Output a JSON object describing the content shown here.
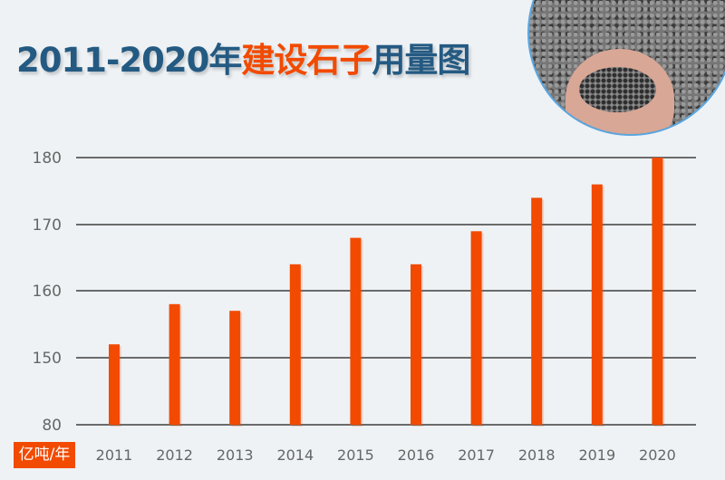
{
  "title": {
    "part1": "2011-2020年",
    "highlight": "建设石子",
    "part2": "用量图"
  },
  "chart_data": {
    "type": "bar",
    "title": "2011-2020年建设石子用量图",
    "unit_label": "亿吨/年",
    "categories": [
      "2011",
      "2012",
      "2013",
      "2014",
      "2015",
      "2016",
      "2017",
      "2018",
      "2019",
      "2020"
    ],
    "values": [
      152,
      158,
      157,
      164,
      168,
      164,
      169,
      174,
      176,
      180
    ],
    "yticks": [
      80,
      150,
      160,
      170,
      180
    ],
    "ylim": [
      80,
      180
    ],
    "axis_break": "80-150",
    "grid": true,
    "colors": {
      "bar": "#f24a00",
      "grid": "#6b6b6b",
      "title": "#245a82",
      "highlight": "#f24a00"
    }
  }
}
